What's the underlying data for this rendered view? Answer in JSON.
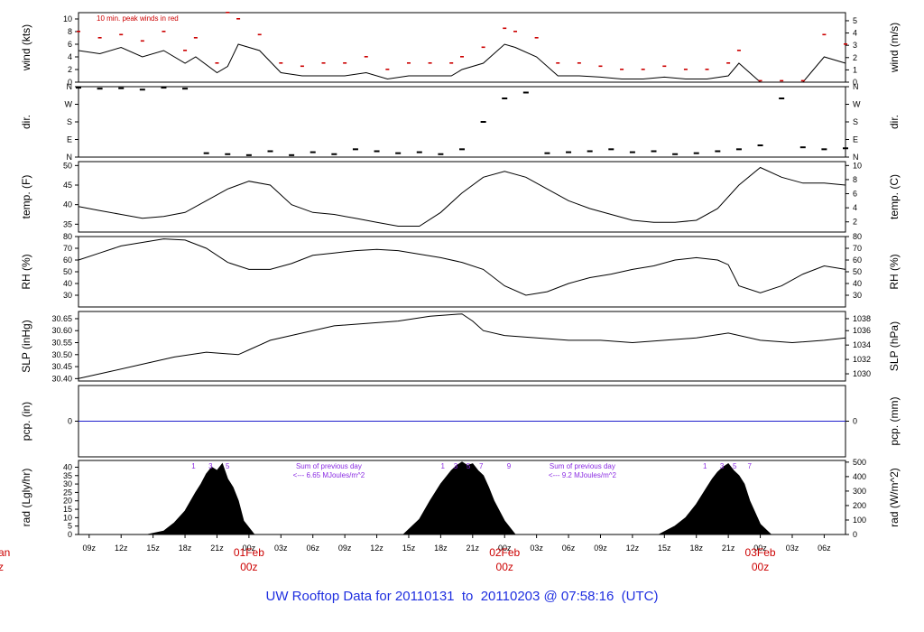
{
  "page": {
    "title_parts": {
      "prefix": "UW Rooftop Data for",
      "start": "20110131",
      "to": "to",
      "end": "20110203",
      "at": "@",
      "time": "07:58:16",
      "tz": "(UTC)"
    }
  },
  "colors": {
    "line": "#000000",
    "peak": "#cc0000",
    "precip": "#1f1fcc",
    "note_purple": "#8a2be2",
    "title": "#1f2fe0",
    "date": "#cc0000"
  },
  "chart_data": {
    "type": "line",
    "time_axis": {
      "unit": "hours from 2011-01-31 08z",
      "range": [
        0,
        72
      ],
      "tick_labels": [
        "09z",
        "12z",
        "15z",
        "18z",
        "21z",
        "00z",
        "03z",
        "06z",
        "09z",
        "12z",
        "15z",
        "18z",
        "21z",
        "00z",
        "03z",
        "06z",
        "09z",
        "12z",
        "15z",
        "18z",
        "21z",
        "00z",
        "03z",
        "06z"
      ],
      "tick_hours": [
        1,
        4,
        7,
        10,
        13,
        16,
        19,
        22,
        25,
        28,
        31,
        34,
        37,
        40,
        43,
        46,
        49,
        52,
        55,
        58,
        61,
        64,
        67,
        70
      ],
      "date_markers": [
        {
          "label": "01Feb",
          "sub": "00z",
          "hour": 16
        },
        {
          "label": "02Feb",
          "sub": "00z",
          "hour": 40
        },
        {
          "label": "03Feb",
          "sub": "00z",
          "hour": 64
        }
      ],
      "left_edge_fragments": [
        "an",
        "z"
      ]
    },
    "panels": [
      {
        "id": "wind",
        "ylabel_left": "wind (kts)",
        "ylabel_right": "wind (m/s)",
        "ylim": [
          0,
          11
        ],
        "left_ticks": [
          0,
          2,
          4,
          6,
          8,
          10
        ],
        "right_ticks": [
          "0",
          "1",
          "2",
          "3",
          "4",
          "5"
        ],
        "right_tick_values_kts": [
          0,
          1.94,
          3.89,
          5.83,
          7.78,
          9.72
        ],
        "annotation": "10 min. peak winds in red",
        "series": [
          {
            "name": "wind speed",
            "x": [
              0,
              2,
              4,
              6,
              8,
              10,
              11,
              13,
              14,
              15,
              17,
              19,
              21,
              23,
              25,
              27,
              29,
              31,
              33,
              35,
              36,
              38,
              40,
              41,
              43,
              45,
              47,
              49,
              51,
              53,
              55,
              57,
              59,
              61,
              62,
              64,
              66,
              68,
              70,
              72
            ],
            "y": [
              5,
              4.5,
              5.5,
              4,
              5,
              3,
              4,
              1.5,
              2.5,
              6,
              5,
              1.5,
              1,
              1,
              1,
              1.5,
              0.5,
              1,
              1,
              1,
              2,
              3,
              6,
              5.5,
              4,
              1,
              1,
              0.8,
              0.5,
              0.5,
              0.8,
              0.5,
              0.5,
              1,
              3,
              0,
              0,
              0,
              4,
              3
            ]
          },
          {
            "name": "peak",
            "x": [
              0,
              2,
              4,
              6,
              8,
              10,
              11,
              13,
              14,
              15,
              17,
              19,
              21,
              23,
              25,
              27,
              29,
              31,
              33,
              35,
              36,
              38,
              40,
              41,
              43,
              45,
              47,
              49,
              51,
              53,
              55,
              57,
              59,
              61,
              62,
              64,
              66,
              68,
              70,
              72
            ],
            "y": [
              8,
              7,
              7.5,
              6.5,
              8,
              5,
              7,
              3,
              11,
              10,
              7.5,
              3,
              2.5,
              3,
              3,
              4,
              2,
              3,
              3,
              3,
              4,
              5.5,
              8.5,
              8,
              7,
              3,
              3,
              2.5,
              2,
              2,
              2.5,
              2,
              2,
              3,
              5,
              0.2,
              0.2,
              0.2,
              7.5,
              6
            ]
          }
        ]
      },
      {
        "id": "dir",
        "ylabel_left": "dir.",
        "ylabel_right": "dir.",
        "ylim": [
          0,
          360
        ],
        "left_ticks": [
          "N",
          "E",
          "S",
          "W",
          "N"
        ],
        "right_ticks": [
          "N",
          "E",
          "S",
          "W",
          "N"
        ],
        "tick_values": [
          0,
          90,
          180,
          270,
          360
        ],
        "series": [
          {
            "name": "direction",
            "x": [
              0,
              2,
              4,
              6,
              8,
              10,
              12,
              14,
              16,
              18,
              20,
              22,
              24,
              26,
              28,
              30,
              32,
              34,
              36,
              38,
              40,
              42,
              44,
              46,
              48,
              50,
              52,
              54,
              56,
              58,
              60,
              62,
              64,
              66,
              68,
              70,
              72
            ],
            "y": [
              355,
              350,
              352,
              345,
              355,
              350,
              20,
              15,
              10,
              30,
              10,
              25,
              15,
              40,
              30,
              20,
              25,
              15,
              40,
              180,
              300,
              330,
              20,
              25,
              30,
              40,
              25,
              30,
              15,
              20,
              30,
              40,
              60,
              300,
              50,
              40,
              45
            ]
          }
        ]
      },
      {
        "id": "temp",
        "ylabel_left": "temp. (F)",
        "ylabel_right": "temp. (C)",
        "ylim": [
          33,
          51
        ],
        "left_ticks": [
          35,
          40,
          45,
          50
        ],
        "right_ticks": [
          "2",
          "4",
          "6",
          "8",
          "10"
        ],
        "right_tick_values_F": [
          35.6,
          39.2,
          42.8,
          46.4,
          50
        ],
        "series": [
          {
            "name": "temperature",
            "x": [
              0,
              2,
              4,
              6,
              8,
              10,
              12,
              14,
              16,
              18,
              20,
              22,
              24,
              26,
              28,
              30,
              32,
              34,
              36,
              38,
              40,
              42,
              44,
              46,
              48,
              50,
              52,
              54,
              56,
              58,
              60,
              62,
              64,
              66,
              68,
              70,
              72
            ],
            "y": [
              39.5,
              38.5,
              37.5,
              36.5,
              37,
              38,
              41,
              44,
              46,
              45,
              40,
              38,
              37.5,
              36.5,
              35.5,
              34.5,
              34.5,
              38,
              43,
              47,
              48.5,
              47,
              44,
              41,
              39,
              37.5,
              36,
              35.5,
              35.5,
              36,
              39,
              45,
              49.5,
              47,
              45.5,
              45.5,
              45
            ]
          }
        ]
      },
      {
        "id": "rh",
        "ylabel_left": "RH (%)",
        "ylabel_right": "RH (%)",
        "ylim": [
          20,
          80
        ],
        "left_ticks": [
          30,
          40,
          50,
          60,
          70,
          80
        ],
        "right_ticks": [
          "30",
          "40",
          "50",
          "60",
          "70",
          "80"
        ],
        "series": [
          {
            "name": "rh",
            "x": [
              0,
              2,
              4,
              6,
              8,
              10,
              12,
              14,
              16,
              18,
              20,
              22,
              24,
              26,
              28,
              30,
              32,
              34,
              36,
              38,
              40,
              42,
              44,
              46,
              48,
              50,
              52,
              54,
              56,
              58,
              60,
              61,
              62,
              64,
              66,
              68,
              70,
              72
            ],
            "y": [
              60,
              66,
              72,
              75,
              78,
              77,
              70,
              58,
              52,
              52,
              57,
              64,
              66,
              68,
              69,
              68,
              65,
              62,
              58,
              52,
              38,
              30,
              33,
              40,
              45,
              48,
              52,
              55,
              60,
              62,
              60,
              56,
              38,
              32,
              38,
              48,
              55,
              52
            ]
          }
        ]
      },
      {
        "id": "slp",
        "ylabel_left": "SLP (inHg)",
        "ylabel_right": "SLP (hPa)",
        "ylim": [
          30.39,
          30.68
        ],
        "left_ticks": [
          "30.40",
          "30.45",
          "30.50",
          "30.55",
          "30.60",
          "30.65"
        ],
        "left_tick_values": [
          30.4,
          30.45,
          30.5,
          30.55,
          30.6,
          30.65
        ],
        "right_ticks": [
          "1030",
          "1032",
          "1034",
          "1036",
          "1038"
        ],
        "right_tick_values_inHg": [
          30.42,
          30.48,
          30.54,
          30.6,
          30.65
        ],
        "series": [
          {
            "name": "slp",
            "x": [
              0,
              3,
              6,
              9,
              12,
              15,
              16,
              18,
              21,
              24,
              27,
              30,
              33,
              36,
              37,
              38,
              40,
              43,
              46,
              49,
              52,
              55,
              58,
              61,
              64,
              67,
              70,
              72
            ],
            "y": [
              30.4,
              30.43,
              30.46,
              30.49,
              30.51,
              30.5,
              30.52,
              30.56,
              30.59,
              30.62,
              30.63,
              30.64,
              30.66,
              30.67,
              30.64,
              30.6,
              30.58,
              30.57,
              30.56,
              30.56,
              30.55,
              30.56,
              30.57,
              30.59,
              30.56,
              30.55,
              30.56,
              30.57
            ]
          }
        ]
      },
      {
        "id": "pcp",
        "ylabel_left": "pcp. (in)",
        "ylabel_right": "pcp. (mm)",
        "ylim": [
          -1,
          1
        ],
        "left_ticks": [
          "0"
        ],
        "right_ticks": [
          "0"
        ],
        "tick_values": [
          0
        ],
        "series": [
          {
            "name": "precip",
            "x": [
              0,
              72
            ],
            "y": [
              0,
              0
            ]
          }
        ]
      },
      {
        "id": "rad",
        "ylabel_left": "rad (Lgly/hr)",
        "ylabel_right": "rad (W/m^2)",
        "ylim": [
          0,
          44
        ],
        "left_ticks": [
          0,
          5,
          10,
          15,
          20,
          25,
          30,
          35,
          40
        ],
        "right_ticks": [
          "0",
          "100",
          "200",
          "300",
          "400",
          "500"
        ],
        "right_tick_values_lgly": [
          0,
          8.6,
          17.2,
          25.8,
          34.4,
          43
        ],
        "series": [
          {
            "name": "radiation",
            "x": [
              6.5,
              8,
              9,
              10,
              11,
              11.5,
              12,
              12.5,
              13,
              13.5,
              14,
              14.5,
              15,
              15.5,
              16.5,
              30.5,
              32,
              33,
              34,
              35,
              35.5,
              36,
              36.5,
              37,
              37.5,
              38,
              38.5,
              39,
              40,
              41,
              54.5,
              56,
              57,
              58,
              59,
              59.5,
              60,
              60.5,
              61,
              61.5,
              62,
              62.5,
              63,
              64,
              65
            ],
            "y": [
              0,
              2,
              7,
              14,
              25,
              30,
              36,
              40,
              38,
              42,
              33,
              28,
              20,
              8,
              0,
              0,
              9,
              20,
              30,
              38,
              41,
              43,
              41,
              42,
              38,
              35,
              28,
              20,
              8,
              0,
              0,
              5,
              10,
              18,
              28,
              33,
              37,
              40,
              42,
              38,
              35,
              30,
              20,
              6,
              0
            ]
          }
        ],
        "hour_marks": [
          {
            "label": "1",
            "hour": 10.8
          },
          {
            "label": "3",
            "hour": 12.4
          },
          {
            "label": "5",
            "hour": 14
          },
          {
            "label": "1",
            "hour": 34.2
          },
          {
            "label": "3",
            "hour": 35.4
          },
          {
            "label": "5",
            "hour": 36.6
          },
          {
            "label": "7",
            "hour": 37.8
          },
          {
            "label": "9",
            "hour": 40.4
          },
          {
            "label": "1",
            "hour": 58.8
          },
          {
            "label": "3",
            "hour": 60.4
          },
          {
            "label": "5",
            "hour": 61.6
          },
          {
            "label": "7",
            "hour": 63
          }
        ],
        "notes": [
          {
            "line1": "Sum of previous day",
            "line2": "<--- 6.65 MJoules/m^2",
            "hour": 23.5
          },
          {
            "line1": "Sum of previous day",
            "line2": "<--- 9.2 MJoules/m^2",
            "hour": 47.3
          }
        ]
      }
    ]
  }
}
